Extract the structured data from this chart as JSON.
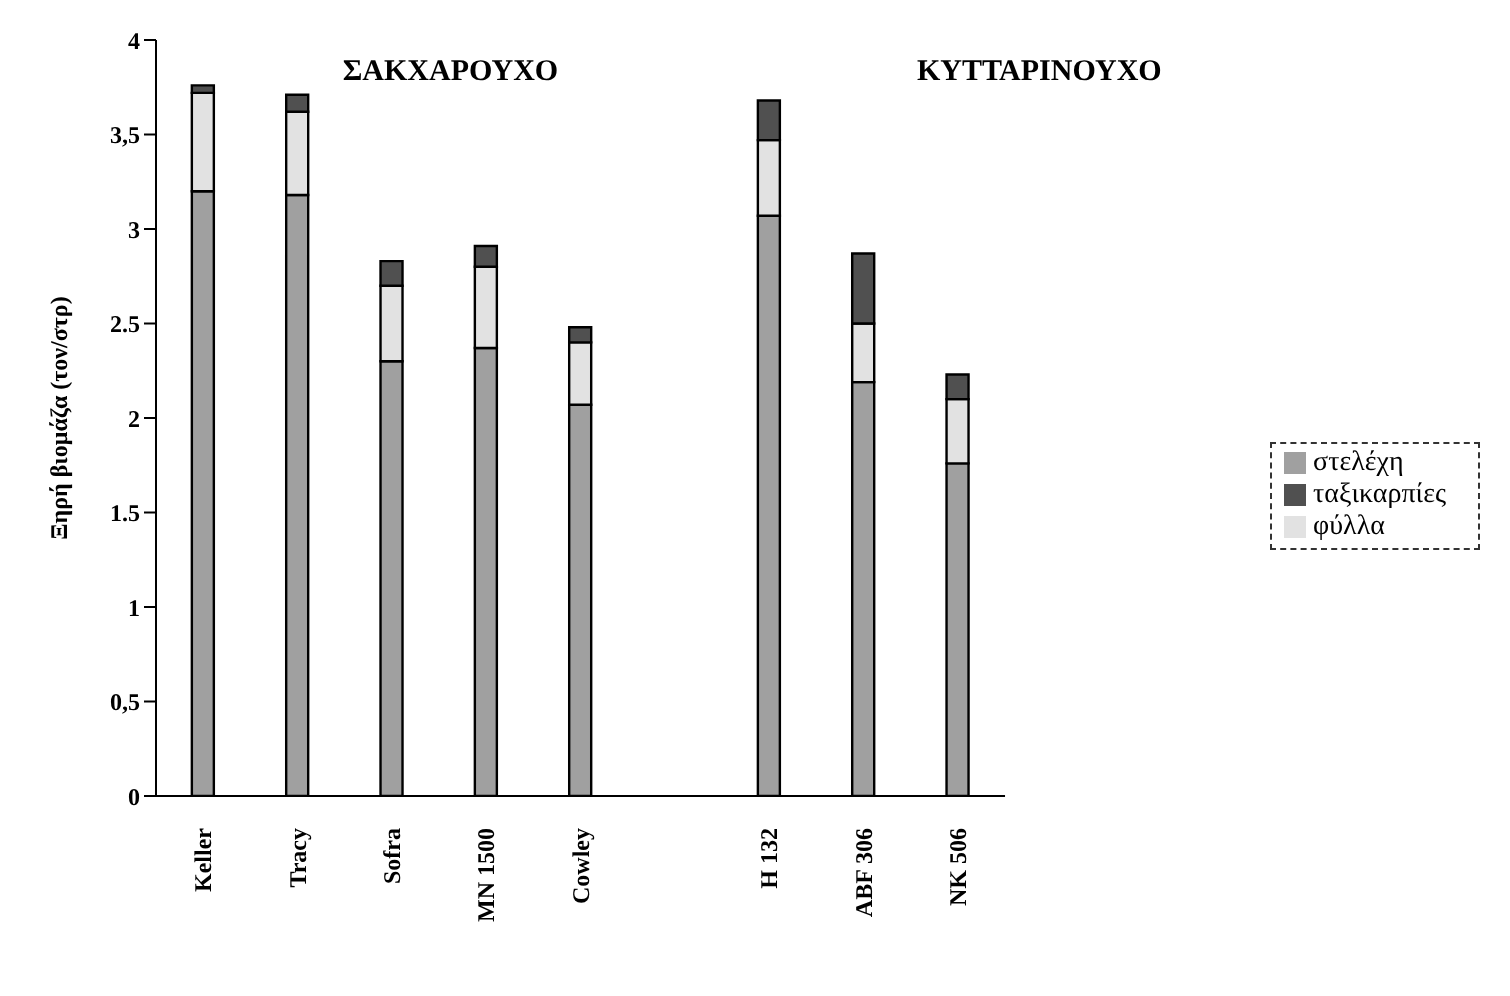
{
  "chart_data": {
    "type": "bar",
    "stacked": true,
    "ylabel": "Ξηρή βιομάζα (τον/στρ)",
    "categories": [
      "Keller",
      "Tracy",
      "Sofra",
      "MN 1500",
      "Cowley",
      null,
      "H 132",
      "ABF 306",
      "NK 506"
    ],
    "series": [
      {
        "name": "στελέχη",
        "color": "#a0a0a0",
        "values": [
          3.2,
          3.18,
          2.3,
          2.37,
          2.07,
          null,
          3.07,
          2.19,
          1.76
        ]
      },
      {
        "name": "φύλλα",
        "color": "#e2e2e2",
        "values": [
          0.52,
          0.44,
          0.4,
          0.43,
          0.33,
          null,
          0.4,
          0.31,
          0.34
        ]
      },
      {
        "name": "ταξικαρπίες",
        "color": "#505050",
        "values": [
          0.04,
          0.09,
          0.13,
          0.11,
          0.08,
          null,
          0.21,
          0.37,
          0.13
        ]
      }
    ],
    "annotations": [
      "ΣΑΚΧΑΡΟΥΧΟ",
      "ΚΥΤΤΑΡΙΝΟΥΧΟ"
    ],
    "ylim": [
      0,
      4
    ],
    "yticks": [
      0,
      {
        "value": 0.5,
        "label": "0,5"
      },
      1,
      1.5,
      2,
      2.5,
      3,
      {
        "value": 3.5,
        "label": "3,5"
      },
      4
    ],
    "grid": false,
    "legend": "right"
  }
}
